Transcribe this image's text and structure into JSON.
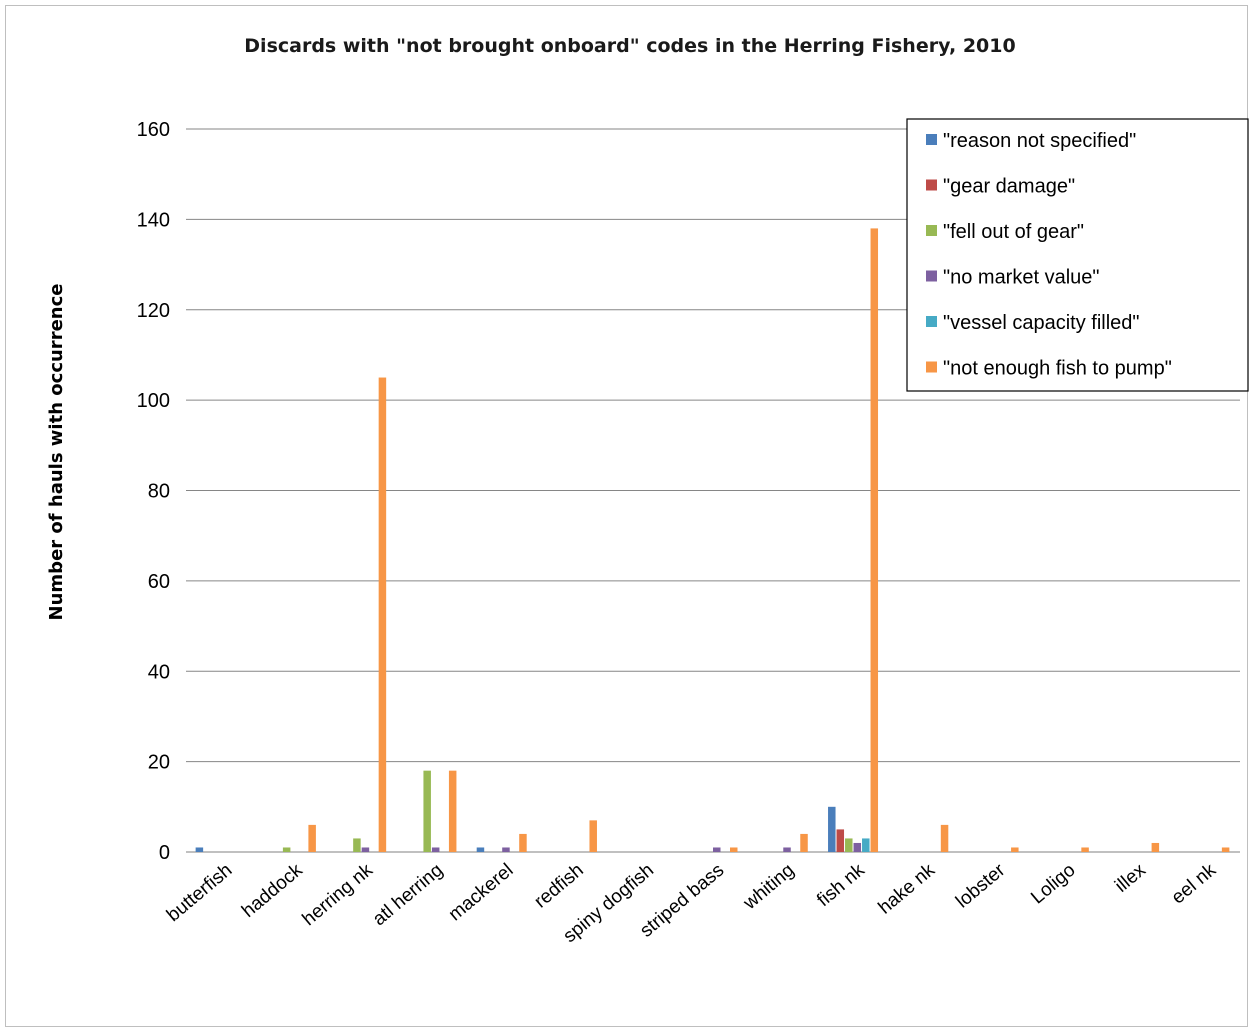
{
  "chart_data": {
    "type": "bar",
    "title": "Discards with \"not brought onboard\" codes in the Herring Fishery, 2010",
    "xlabel": "",
    "ylabel": "Number of hauls with occurrence",
    "ylim": [
      0,
      160
    ],
    "yticks": [
      0,
      20,
      40,
      60,
      80,
      100,
      120,
      140,
      160
    ],
    "grid": true,
    "legend_position": "top-right",
    "categories": [
      "butterfish",
      "haddock",
      "herring nk",
      "atl herring",
      "mackerel",
      "redfish",
      "spiny dogfish",
      "striped bass",
      "whiting",
      "fish nk",
      "hake nk",
      "lobster",
      "Loligo",
      "illex",
      "eel nk"
    ],
    "series": [
      {
        "name": "\"reason not specified\"",
        "color": "#4a7ebb",
        "values": [
          1,
          0,
          0,
          0,
          1,
          0,
          0,
          0,
          0,
          10,
          0,
          0,
          0,
          0,
          0
        ]
      },
      {
        "name": "\"gear damage\"",
        "color": "#be4b48",
        "values": [
          0,
          0,
          0,
          0,
          0,
          0,
          0,
          0,
          0,
          5,
          0,
          0,
          0,
          0,
          0
        ]
      },
      {
        "name": "\"fell out of gear\"",
        "color": "#98b954",
        "values": [
          0,
          1,
          3,
          18,
          0,
          0,
          0,
          0,
          0,
          3,
          0,
          0,
          0,
          0,
          0
        ]
      },
      {
        "name": "\"no market value\"",
        "color": "#7d60a0",
        "values": [
          0,
          0,
          1,
          1,
          1,
          0,
          0,
          1,
          1,
          2,
          0,
          0,
          0,
          0,
          0
        ]
      },
      {
        "name": "\"vessel capacity filled\"",
        "color": "#46aac5",
        "values": [
          0,
          0,
          0,
          0,
          0,
          0,
          0,
          0,
          0,
          3,
          0,
          0,
          0,
          0,
          0
        ]
      },
      {
        "name": "\"not enough fish to pump\"",
        "color": "#f79646",
        "values": [
          0,
          6,
          105,
          18,
          4,
          7,
          0,
          1,
          4,
          138,
          6,
          1,
          1,
          2,
          1
        ]
      }
    ]
  }
}
